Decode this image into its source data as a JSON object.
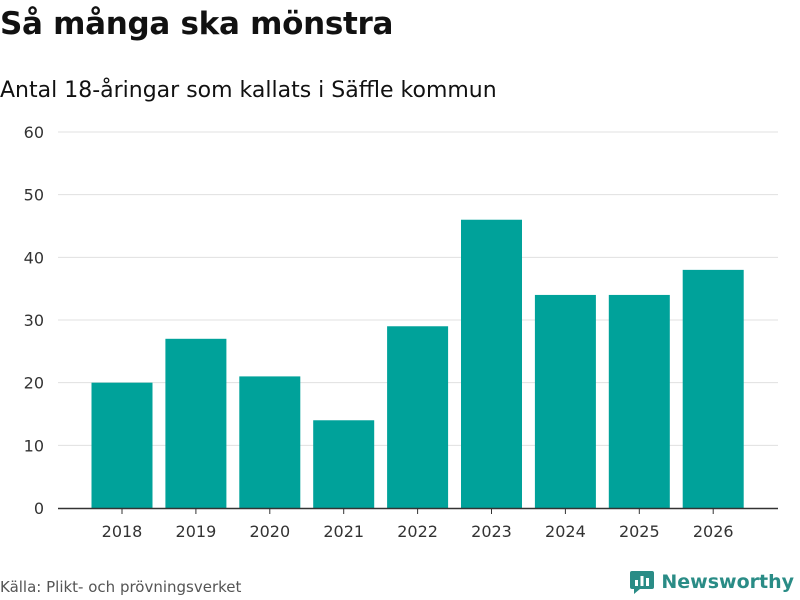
{
  "title": "Så många ska mönstra",
  "subtitle": "Antal 18-åringar som kallats i Säffle kommun",
  "source": "Källa: Plikt- och prövningsverket",
  "brand": "Newsworthy",
  "colors": {
    "bar": "#00a29a",
    "grid": "#e0e0e0",
    "axis": "#333333",
    "brand": "#2a8c86"
  },
  "chart_data": {
    "type": "bar",
    "categories": [
      "2018",
      "2019",
      "2020",
      "2021",
      "2022",
      "2023",
      "2024",
      "2025",
      "2026"
    ],
    "values": [
      20,
      27,
      21,
      14,
      29,
      46,
      34,
      34,
      38
    ],
    "title": "Så många ska mönstra",
    "subtitle": "Antal 18-åringar som kallats i Säffle kommun",
    "xlabel": "",
    "ylabel": "",
    "ylim": [
      0,
      60
    ],
    "yticks": [
      0,
      10,
      20,
      30,
      40,
      50,
      60
    ],
    "grid": true
  }
}
